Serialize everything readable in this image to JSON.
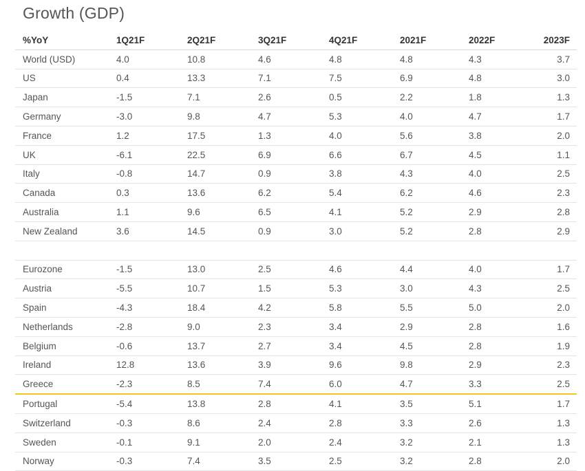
{
  "title": "Growth (GDP)",
  "columns": [
    "%YoY",
    "1Q21F",
    "2Q21F",
    "3Q21F",
    "4Q21F",
    "2021F",
    "2022F",
    "2023F"
  ],
  "rows": [
    [
      "World (USD)",
      "4.0",
      "10.8",
      "4.6",
      "4.8",
      "4.8",
      "4.3",
      "3.7"
    ],
    [
      "US",
      "0.4",
      "13.3",
      "7.1",
      "7.5",
      "6.9",
      "4.8",
      "3.0"
    ],
    [
      "Japan",
      "-1.5",
      "7.1",
      "2.6",
      "0.5",
      "2.2",
      "1.8",
      "1.3"
    ],
    [
      "Germany",
      "-3.0",
      "9.8",
      "4.7",
      "5.3",
      "4.0",
      "4.7",
      "1.7"
    ],
    [
      "France",
      "1.2",
      "17.5",
      "1.3",
      "4.0",
      "5.6",
      "3.8",
      "2.0"
    ],
    [
      "UK",
      "-6.1",
      "22.5",
      "6.9",
      "6.6",
      "6.7",
      "4.5",
      "1.1"
    ],
    [
      "Italy",
      "-0.8",
      "14.7",
      "0.9",
      "3.8",
      "4.3",
      "4.0",
      "2.5"
    ],
    [
      "Canada",
      "0.3",
      "13.6",
      "6.2",
      "5.4",
      "6.2",
      "4.6",
      "2.3"
    ],
    [
      "Australia",
      "1.1",
      "9.6",
      "6.5",
      "4.1",
      "5.2",
      "2.9",
      "2.8"
    ],
    [
      "New Zealand",
      "3.6",
      "14.5",
      "0.9",
      "3.0",
      "5.2",
      "2.8",
      "2.9"
    ],
    [
      "",
      "",
      "",
      "",
      "",
      "",
      "",
      ""
    ],
    [
      "Eurozone",
      "-1.5",
      "13.0",
      "2.5",
      "4.6",
      "4.4",
      "4.0",
      "1.7"
    ],
    [
      "Austria",
      "-5.5",
      "10.7",
      "1.5",
      "5.3",
      "3.0",
      "4.3",
      "2.5"
    ],
    [
      "Spain",
      "-4.3",
      "18.4",
      "4.2",
      "5.8",
      "5.5",
      "5.0",
      "2.0"
    ],
    [
      "Netherlands",
      "-2.8",
      "9.0",
      "2.3",
      "3.4",
      "2.9",
      "2.8",
      "1.6"
    ],
    [
      "Belgium",
      "-0.6",
      "13.7",
      "2.7",
      "3.4",
      "4.5",
      "2.8",
      "1.9"
    ],
    [
      "Ireland",
      "12.8",
      "13.6",
      "3.9",
      "9.6",
      "9.8",
      "2.9",
      "2.3"
    ],
    [
      "Greece",
      "-2.3",
      "8.5",
      "7.4",
      "6.0",
      "4.7",
      "3.3",
      "2.5"
    ],
    [
      "Portugal",
      "-5.4",
      "13.8",
      "2.8",
      "4.1",
      "3.5",
      "5.1",
      "1.7"
    ],
    [
      "Switzerland",
      "-0.3",
      "8.6",
      "2.4",
      "2.8",
      "3.3",
      "2.6",
      "1.3"
    ],
    [
      "Sweden",
      "-0.1",
      "9.1",
      "2.0",
      "2.4",
      "3.2",
      "2.1",
      "1.3"
    ],
    [
      "Norway",
      "-0.3",
      "7.4",
      "3.5",
      "2.5",
      "3.2",
      "2.8",
      "2.0"
    ]
  ],
  "highlight_row": "Greece",
  "colors": {
    "highlight_line": "#f7c51a",
    "text": "#555555",
    "header_text": "#333333"
  }
}
